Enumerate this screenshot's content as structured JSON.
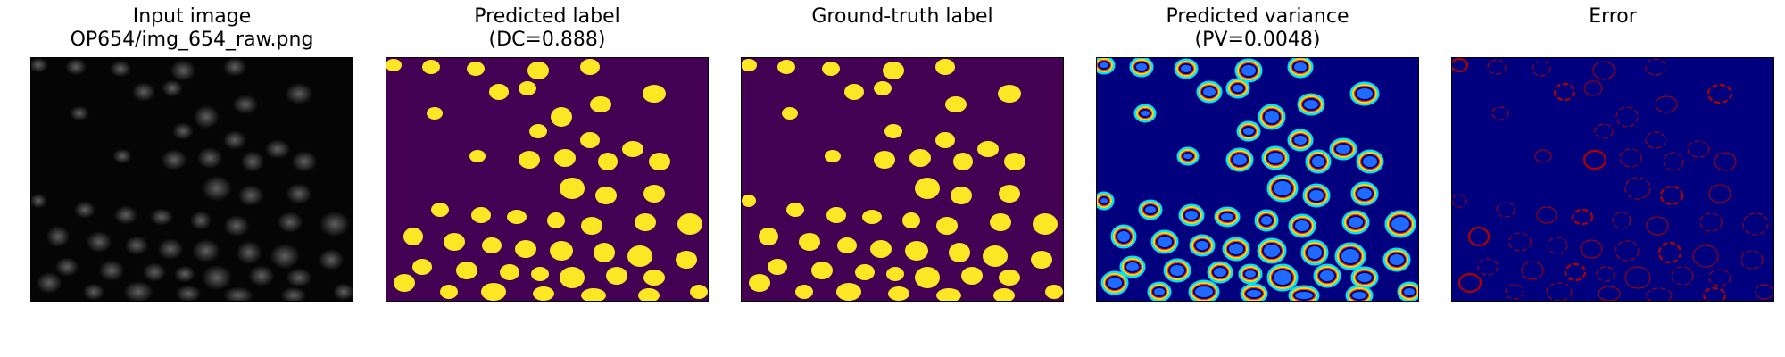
{
  "panels": [
    {
      "title": "Input image\nOP654/img_654_raw.png",
      "kind": "raw"
    },
    {
      "title": "Predicted label\n(DC=0.888)",
      "kind": "pred"
    },
    {
      "title": "Ground-truth label",
      "kind": "gt"
    },
    {
      "title": "Predicted variance\n(PV=0.0048)",
      "kind": "var"
    },
    {
      "title": "Error",
      "kind": "err"
    }
  ],
  "colors": {
    "raw_bg": "#050505",
    "raw_cell": "#6a6a6a",
    "label_bg": "#440154",
    "label_fg": "#fde725",
    "var_bg": "#00007f",
    "var_ring_outer": "#00e5ff",
    "var_ring_mid": "#ffd400",
    "var_ring_inner": "#ff3d00",
    "var_core": "#1f6bff",
    "err_bg": "#00007f",
    "err_line": "#b00000"
  }
}
